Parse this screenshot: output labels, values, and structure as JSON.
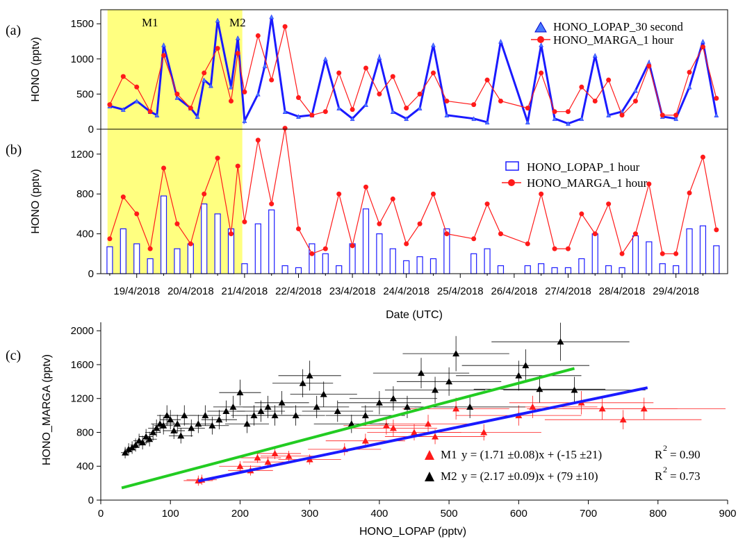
{
  "chart_data": [
    {
      "panel": "(a)",
      "type": "line",
      "ylabel": "HONO (pptv)",
      "ylim": [
        0,
        1700
      ],
      "yticks": [
        0,
        500,
        1000,
        1500
      ],
      "periods": [
        {
          "label": "M1",
          "start": "2018-04-18T11:00",
          "end": "2018-04-20T23:00",
          "highlight": "#ffff80"
        },
        {
          "label": "M2",
          "start": "2018-04-21T00:00",
          "end": "2018-04-29T23:00"
        }
      ],
      "series": [
        {
          "name": "HONO_LOPAP_30 second",
          "color": "#1a1aff",
          "marker": "triangle",
          "x": [
            "2018-04-18T12:00",
            "2018-04-18T18:00",
            "2018-04-19T00:00",
            "2018-04-19T06:00",
            "2018-04-19T09:00",
            "2018-04-19T12:00",
            "2018-04-19T18:00",
            "2018-04-20T00:00",
            "2018-04-20T03:00",
            "2018-04-20T06:00",
            "2018-04-20T09:00",
            "2018-04-20T12:00",
            "2018-04-20T18:00",
            "2018-04-20T21:00",
            "2018-04-21T00:00",
            "2018-04-21T06:00",
            "2018-04-21T09:00",
            "2018-04-21T12:00",
            "2018-04-21T18:00",
            "2018-04-22T00:00",
            "2018-04-22T06:00",
            "2018-04-22T12:00",
            "2018-04-22T18:00",
            "2018-04-23T00:00",
            "2018-04-23T06:00",
            "2018-04-23T12:00",
            "2018-04-23T18:00",
            "2018-04-24T00:00",
            "2018-04-24T06:00",
            "2018-04-24T12:00",
            "2018-04-24T18:00",
            "2018-04-25T06:00",
            "2018-04-25T12:00",
            "2018-04-25T18:00",
            "2018-04-26T06:00",
            "2018-04-26T12:00",
            "2018-04-26T18:00",
            "2018-04-27T00:00",
            "2018-04-27T06:00",
            "2018-04-27T12:00",
            "2018-04-27T18:00",
            "2018-04-28T00:00",
            "2018-04-28T06:00",
            "2018-04-28T12:00",
            "2018-04-28T18:00",
            "2018-04-29T00:00",
            "2018-04-29T06:00",
            "2018-04-29T12:00",
            "2018-04-29T18:00"
          ],
          "y": [
            330,
            280,
            400,
            250,
            200,
            1200,
            450,
            300,
            180,
            700,
            620,
            1550,
            600,
            1300,
            120,
            500,
            900,
            1600,
            250,
            180,
            200,
            1000,
            300,
            150,
            350,
            1020,
            250,
            150,
            300,
            1200,
            200,
            150,
            100,
            1250,
            100,
            1200,
            150,
            80,
            150,
            1050,
            200,
            250,
            550,
            950,
            180,
            150,
            600,
            1250,
            200
          ]
        },
        {
          "name": "HONO_MARGA_1 hour",
          "color": "#ff1a1a",
          "marker": "circle",
          "x": [
            "2018-04-18T12:00",
            "2018-04-18T18:00",
            "2018-04-19T00:00",
            "2018-04-19T06:00",
            "2018-04-19T12:00",
            "2018-04-19T18:00",
            "2018-04-20T00:00",
            "2018-04-20T06:00",
            "2018-04-20T12:00",
            "2018-04-20T18:00",
            "2018-04-20T21:00",
            "2018-04-21T00:00",
            "2018-04-21T06:00",
            "2018-04-21T12:00",
            "2018-04-21T18:00",
            "2018-04-22T00:00",
            "2018-04-22T06:00",
            "2018-04-22T12:00",
            "2018-04-22T18:00",
            "2018-04-23T00:00",
            "2018-04-23T06:00",
            "2018-04-23T12:00",
            "2018-04-23T18:00",
            "2018-04-24T00:00",
            "2018-04-24T06:00",
            "2018-04-24T12:00",
            "2018-04-24T18:00",
            "2018-04-25T06:00",
            "2018-04-25T12:00",
            "2018-04-25T18:00",
            "2018-04-26T06:00",
            "2018-04-26T12:00",
            "2018-04-26T18:00",
            "2018-04-27T00:00",
            "2018-04-27T06:00",
            "2018-04-27T12:00",
            "2018-04-27T18:00",
            "2018-04-28T00:00",
            "2018-04-28T06:00",
            "2018-04-28T12:00",
            "2018-04-28T18:00",
            "2018-04-29T00:00",
            "2018-04-29T06:00",
            "2018-04-29T12:00",
            "2018-04-29T18:00"
          ],
          "y": [
            350,
            750,
            600,
            250,
            1050,
            500,
            300,
            800,
            1150,
            400,
            1080,
            530,
            1330,
            700,
            1460,
            450,
            200,
            250,
            800,
            280,
            870,
            500,
            750,
            300,
            500,
            800,
            400,
            350,
            700,
            400,
            300,
            800,
            250,
            250,
            600,
            400,
            700,
            200,
            400,
            900,
            200,
            200,
            810,
            1170,
            440
          ]
        }
      ]
    },
    {
      "panel": "(b)",
      "type": "bar",
      "ylabel": "HONO (pptv)",
      "ylim": [
        0,
        1450
      ],
      "yticks": [
        0,
        400,
        800,
        1200
      ],
      "xlabel": "Date (UTC)",
      "xticklabels": [
        "19/4/2018",
        "20/4/2018",
        "21/4/2018",
        "22/4/2018",
        "23/4/2018",
        "24/4/2018",
        "25/4/2018",
        "26/4/2018",
        "27/4/2018",
        "28/4/2018",
        "29/4/2018"
      ],
      "series": [
        {
          "name": "HONO_LOPAP_1 hour",
          "color": "#1a1aff",
          "marker": "bar",
          "x": [
            "2018-04-18T12:00",
            "2018-04-18T18:00",
            "2018-04-19T00:00",
            "2018-04-19T06:00",
            "2018-04-19T12:00",
            "2018-04-19T18:00",
            "2018-04-20T00:00",
            "2018-04-20T06:00",
            "2018-04-20T12:00",
            "2018-04-20T18:00",
            "2018-04-21T00:00",
            "2018-04-21T06:00",
            "2018-04-21T12:00",
            "2018-04-21T18:00",
            "2018-04-22T00:00",
            "2018-04-22T06:00",
            "2018-04-22T12:00",
            "2018-04-22T18:00",
            "2018-04-23T00:00",
            "2018-04-23T06:00",
            "2018-04-23T12:00",
            "2018-04-23T18:00",
            "2018-04-24T00:00",
            "2018-04-24T06:00",
            "2018-04-24T12:00",
            "2018-04-24T18:00",
            "2018-04-25T06:00",
            "2018-04-25T12:00",
            "2018-04-25T18:00",
            "2018-04-26T06:00",
            "2018-04-26T12:00",
            "2018-04-26T18:00",
            "2018-04-27T00:00",
            "2018-04-27T06:00",
            "2018-04-27T12:00",
            "2018-04-27T18:00",
            "2018-04-28T00:00",
            "2018-04-28T06:00",
            "2018-04-28T12:00",
            "2018-04-28T18:00",
            "2018-04-29T00:00",
            "2018-04-29T06:00",
            "2018-04-29T12:00",
            "2018-04-29T18:00"
          ],
          "y": [
            270,
            450,
            300,
            150,
            780,
            250,
            300,
            700,
            600,
            450,
            100,
            500,
            640,
            80,
            60,
            300,
            200,
            80,
            300,
            650,
            400,
            250,
            130,
            170,
            150,
            450,
            200,
            250,
            80,
            80,
            100,
            60,
            60,
            150,
            400,
            80,
            60,
            380,
            320,
            100,
            80,
            450,
            480,
            280
          ]
        },
        {
          "name": "HONO_MARGA_1 hour",
          "color": "#ff1a1a",
          "marker": "circle",
          "x": [
            "2018-04-18T12:00",
            "2018-04-18T18:00",
            "2018-04-19T00:00",
            "2018-04-19T06:00",
            "2018-04-19T12:00",
            "2018-04-19T18:00",
            "2018-04-20T00:00",
            "2018-04-20T06:00",
            "2018-04-20T12:00",
            "2018-04-20T18:00",
            "2018-04-20T21:00",
            "2018-04-21T00:00",
            "2018-04-21T06:00",
            "2018-04-21T12:00",
            "2018-04-21T18:00",
            "2018-04-22T00:00",
            "2018-04-22T06:00",
            "2018-04-22T12:00",
            "2018-04-22T18:00",
            "2018-04-23T00:00",
            "2018-04-23T06:00",
            "2018-04-23T12:00",
            "2018-04-23T18:00",
            "2018-04-24T00:00",
            "2018-04-24T06:00",
            "2018-04-24T12:00",
            "2018-04-24T18:00",
            "2018-04-25T06:00",
            "2018-04-25T12:00",
            "2018-04-25T18:00",
            "2018-04-26T06:00",
            "2018-04-26T12:00",
            "2018-04-26T18:00",
            "2018-04-27T00:00",
            "2018-04-27T06:00",
            "2018-04-27T12:00",
            "2018-04-27T18:00",
            "2018-04-28T00:00",
            "2018-04-28T06:00",
            "2018-04-28T12:00",
            "2018-04-28T18:00",
            "2018-04-29T00:00",
            "2018-04-29T06:00",
            "2018-04-29T12:00",
            "2018-04-29T18:00"
          ],
          "y": [
            350,
            770,
            600,
            250,
            1060,
            500,
            300,
            800,
            1160,
            400,
            1080,
            520,
            1340,
            700,
            1460,
            450,
            200,
            250,
            800,
            280,
            870,
            500,
            750,
            300,
            500,
            800,
            400,
            350,
            700,
            400,
            300,
            800,
            250,
            250,
            600,
            400,
            700,
            200,
            400,
            900,
            200,
            200,
            810,
            1170,
            440
          ]
        }
      ]
    },
    {
      "panel": "(c)",
      "type": "scatter",
      "xlabel": "HONO_LOPAP (pptv)",
      "ylabel": "HONO_MARGA (pptv)",
      "xlim": [
        0,
        900
      ],
      "ylim": [
        0,
        2100
      ],
      "xticks": [
        0,
        100,
        200,
        300,
        400,
        500,
        600,
        700,
        800,
        900
      ],
      "yticks": [
        0,
        400,
        800,
        1200,
        1600,
        2000
      ],
      "series": [
        {
          "name": "M1",
          "color": "#ff1a1a",
          "marker": "triangle",
          "fit_label": "y = (1.71 ±0.08)x + (-15 ±21)",
          "r2_label": "= 0.90",
          "fit_color": "#1a1aff",
          "fit_x": [
            140,
            785
          ],
          "x": [
            140,
            145,
            200,
            215,
            225,
            240,
            250,
            270,
            300,
            350,
            380,
            410,
            420,
            450,
            470,
            480,
            510,
            550,
            600,
            620,
            690,
            720,
            750,
            780
          ],
          "y": [
            230,
            240,
            400,
            350,
            500,
            450,
            550,
            520,
            480,
            600,
            700,
            880,
            850,
            800,
            900,
            750,
            1080,
            800,
            1000,
            1100,
            1150,
            1080,
            950,
            1080
          ]
        },
        {
          "name": "M2",
          "color": "#000000",
          "marker": "triangle",
          "fit_label": "y = (2.17 ±0.09)x + (79 ±10)",
          "r2_label": "= 0.73",
          "fit_color": "#22cc22",
          "fit_x": [
            30,
            680
          ],
          "x": [
            35,
            40,
            45,
            50,
            55,
            60,
            65,
            70,
            75,
            80,
            85,
            90,
            95,
            100,
            105,
            110,
            115,
            120,
            130,
            140,
            150,
            160,
            170,
            180,
            190,
            200,
            210,
            220,
            230,
            240,
            250,
            260,
            280,
            290,
            300,
            310,
            320,
            340,
            360,
            380,
            400,
            420,
            440,
            460,
            480,
            500,
            510,
            530,
            600,
            610,
            630,
            660,
            680
          ],
          "y": [
            560,
            600,
            620,
            650,
            700,
            680,
            750,
            720,
            800,
            850,
            900,
            880,
            1000,
            950,
            820,
            900,
            760,
            1000,
            850,
            900,
            1000,
            880,
            950,
            1050,
            1100,
            1270,
            900,
            1000,
            1050,
            1100,
            1000,
            1150,
            1000,
            1380,
            1470,
            1100,
            1250,
            1050,
            900,
            1000,
            1150,
            1200,
            1100,
            1500,
            1300,
            1400,
            1730,
            1100,
            1470,
            1590,
            1310,
            1870,
            1300
          ]
        }
      ]
    }
  ],
  "labels": {
    "panel_a": "(a)",
    "panel_b": "(b)",
    "panel_c": "(c)",
    "m1": "M1",
    "m2": "M2",
    "r2": "R",
    "r2_sup": "2"
  }
}
